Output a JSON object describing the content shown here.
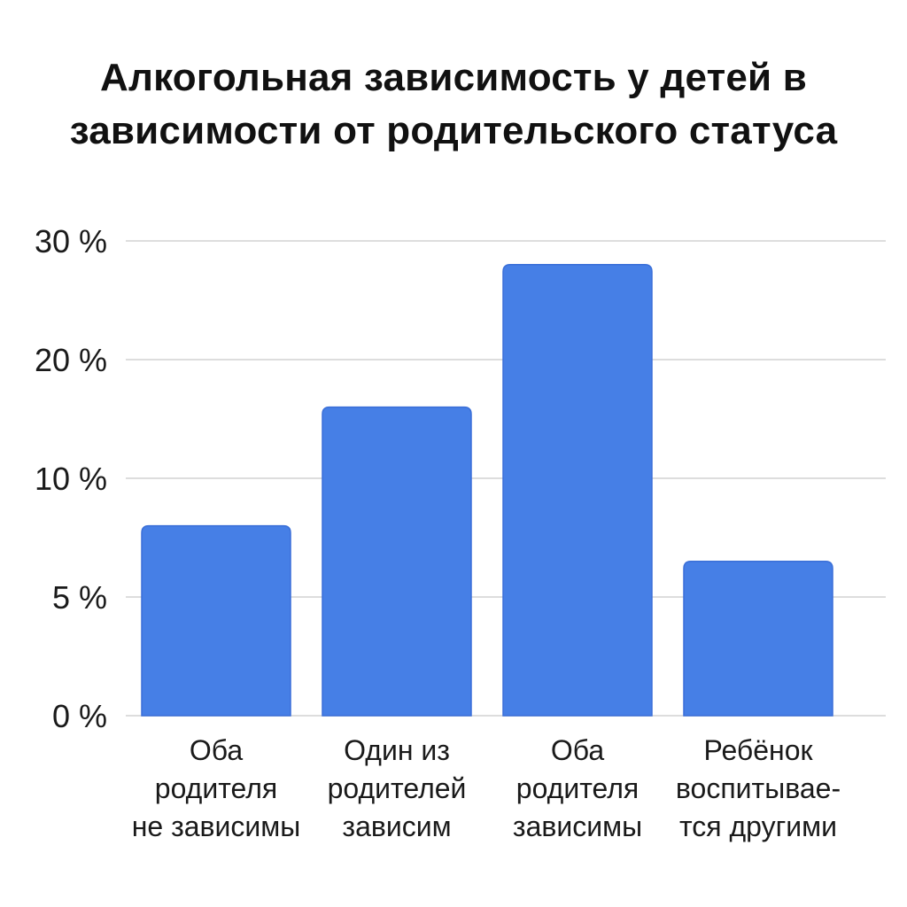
{
  "chart_data": {
    "type": "bar",
    "title_lines": [
      "Алкогольная зависимость у детей в",
      "зависимости от родительского статуса"
    ],
    "xlabel": "",
    "ylabel": "",
    "y_ticks": [
      {
        "value": 0,
        "label": "0 %"
      },
      {
        "value": 5,
        "label": "5 %"
      },
      {
        "value": 10,
        "label": "10 %"
      },
      {
        "value": 20,
        "label": "20 %"
      },
      {
        "value": 30,
        "label": "30 %"
      }
    ],
    "categories": [
      [
        "Оба",
        "родителя",
        "не зависимы"
      ],
      [
        "Один из",
        "родителей",
        "зависим"
      ],
      [
        "Оба",
        "родителя",
        "зависимы"
      ],
      [
        "Ребёнок",
        "воспитывае-",
        "тся другими"
      ]
    ],
    "values": [
      8,
      16,
      28,
      6.5
    ],
    "grid": true,
    "legend": "none",
    "bar_color": "#467fe6",
    "bar_edge_color": "#3a6fd8",
    "grid_color": "#dddddd"
  }
}
